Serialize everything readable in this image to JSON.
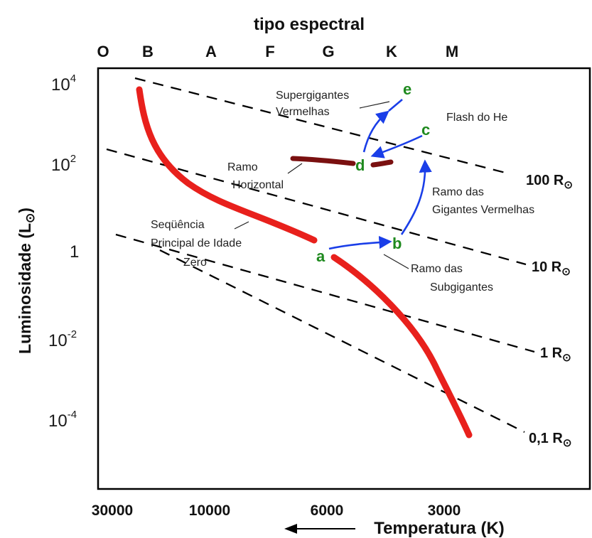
{
  "title_top": "tipo espectral",
  "spectral_types": [
    "O",
    "B",
    "A",
    "F",
    "G",
    "K",
    "M"
  ],
  "y_axis_label": "Luminosidade (L",
  "sun_symbol": "⊙",
  "y_ticks": [
    {
      "base": "10",
      "exp": "4"
    },
    {
      "base": "10",
      "exp": "2"
    },
    {
      "base": "1",
      "exp": ""
    },
    {
      "base": "10",
      "exp": "-2"
    },
    {
      "base": "10",
      "exp": "-4"
    }
  ],
  "x_ticks": [
    "30000",
    "10000",
    "6000",
    "3000"
  ],
  "x_axis_label": "Temperatura (K)",
  "radius_lines": [
    {
      "label": "100 R"
    },
    {
      "label": "10 R"
    },
    {
      "label": "1 R"
    },
    {
      "label": "0,1 R"
    }
  ],
  "annotations": {
    "supergigantes_1": "Supergigantes",
    "supergigantes_2": "Vermelhas",
    "flash": "Flash do He",
    "ramo_h_1": "Ramo",
    "ramo_h_2": "Horizontal",
    "gigantes_1": "Ramo das",
    "gigantes_2": "Gigantes Vermelhas",
    "seq_1": "Seqüência",
    "seq_2": "Principal de Idade",
    "seq_3": "Zero",
    "sub_1": "Ramo das",
    "sub_2": "Subgigantes"
  },
  "points": [
    "a",
    "b",
    "c",
    "d",
    "e"
  ],
  "colors": {
    "main_sequence": "#e8201c",
    "horizontal_branch": "#7a1010",
    "track": "#1a3ee8",
    "points": "#1f8a1f"
  }
}
